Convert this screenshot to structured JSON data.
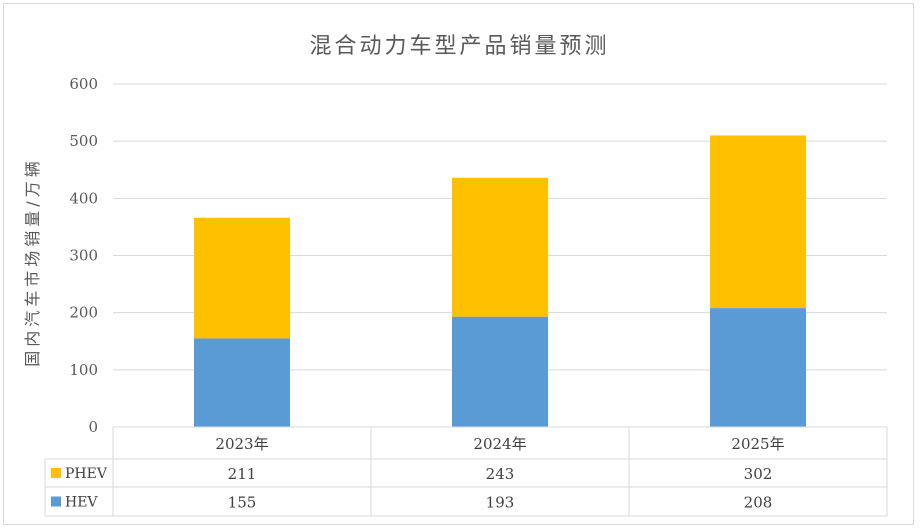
{
  "chart_data": {
    "type": "bar",
    "stacked": true,
    "title": "混合动力车型产品销量预测",
    "ylabel": "国内汽车市场销量/万辆",
    "xlabel": "",
    "categories": [
      "2023年",
      "2024年",
      "2025年"
    ],
    "series": [
      {
        "name": "HEV",
        "values": [
          155,
          193,
          208
        ],
        "color": "#5b9bd5"
      },
      {
        "name": "PHEV",
        "values": [
          211,
          243,
          302
        ],
        "color": "#ffc000"
      }
    ],
    "ylim": [
      0,
      600
    ],
    "yticks": [
      "0",
      "100",
      "200",
      "300",
      "400",
      "500",
      "600"
    ],
    "grid": true,
    "legend": "data-table"
  }
}
